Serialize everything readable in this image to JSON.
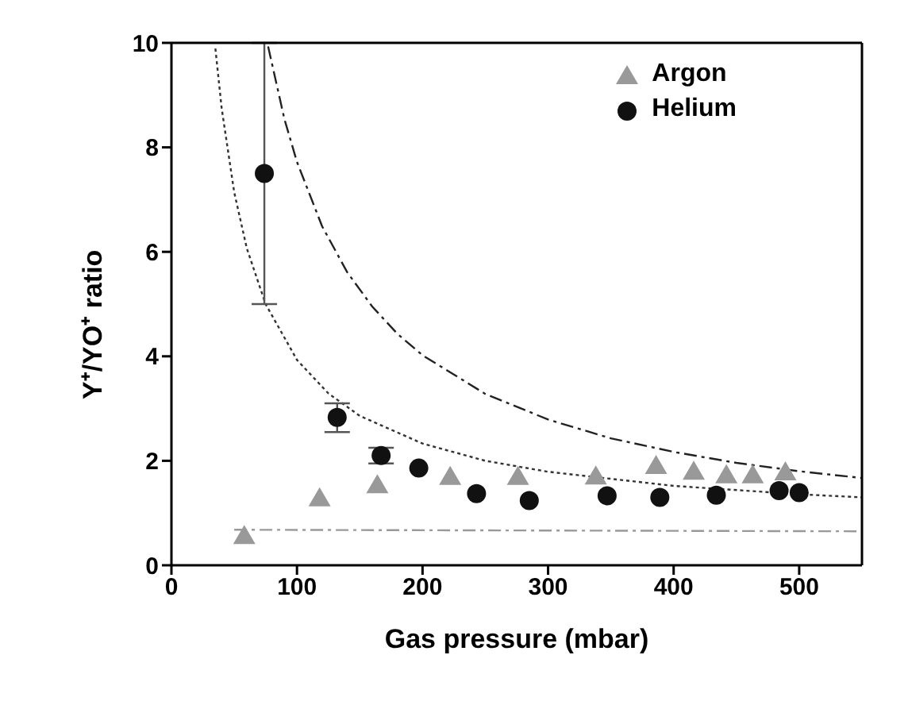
{
  "chart_data": {
    "type": "scatter",
    "xlabel": "Gas pressure (mbar)",
    "ylabel": "Y⁺/YO⁺ ratio",
    "xlim": [
      0,
      550
    ],
    "xticks": [
      0,
      100,
      200,
      300,
      400,
      500
    ],
    "ylim": [
      0,
      10
    ],
    "yticks": [
      0,
      2,
      4,
      6,
      8,
      10
    ],
    "grid": false,
    "legend": "top right",
    "series": [
      {
        "name": "Argon",
        "marker": "triangle",
        "color": "#999999",
        "x": [
          58,
          118,
          164,
          222,
          276,
          338,
          386,
          416,
          442,
          463,
          489
        ],
        "values": [
          0.56,
          1.28,
          1.53,
          1.69,
          1.69,
          1.7,
          1.9,
          1.79,
          1.72,
          1.72,
          1.78
        ]
      },
      {
        "name": "Helium",
        "marker": "circle",
        "color": "#111111",
        "x": [
          74,
          132,
          167,
          197,
          243,
          285,
          347,
          389,
          434,
          484,
          500
        ],
        "values": [
          7.5,
          2.83,
          2.1,
          1.86,
          1.37,
          1.24,
          1.33,
          1.3,
          1.34,
          1.43,
          1.39
        ],
        "errors": [
          [
            5,
            10
          ],
          [
            2.55,
            3.1
          ],
          [
            1.95,
            2.25
          ],
          null,
          null,
          null,
          null,
          null,
          null,
          null,
          null
        ]
      },
      {
        "type": "line",
        "line_style": "dashed",
        "color": "#222222",
        "x": [
          77,
          90,
          100,
          120,
          140,
          160,
          180,
          200,
          250,
          300,
          350,
          400,
          450,
          500,
          550
        ],
        "values": [
          9.93,
          8.54,
          7.72,
          6.49,
          5.61,
          4.95,
          4.43,
          4.02,
          3.28,
          2.79,
          2.43,
          2.17,
          1.96,
          1.8,
          1.67
        ]
      },
      {
        "type": "line",
        "line_style": "dotted",
        "color": "#333333",
        "x": [
          35,
          40,
          50,
          60,
          75,
          100,
          125,
          150,
          200,
          250,
          300,
          400,
          500,
          550
        ],
        "values": [
          9.89,
          8.75,
          7.14,
          6.07,
          5.0,
          3.93,
          3.29,
          2.86,
          2.33,
          2.0,
          1.79,
          1.52,
          1.36,
          1.3
        ]
      },
      {
        "type": "line",
        "line_style": "dashed",
        "color": "#999999",
        "x": [
          50,
          550
        ],
        "values": [
          0.68,
          0.65
        ]
      }
    ]
  }
}
